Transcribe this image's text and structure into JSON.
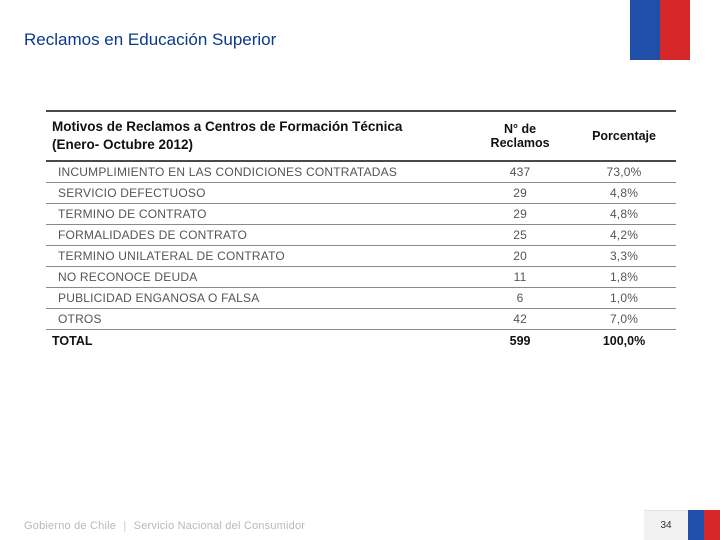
{
  "colors": {
    "title": "#0a3a8a",
    "flag_blue": "#1f4fa8",
    "flag_red": "#d62828",
    "header_text": "#111111",
    "body_text": "#555555",
    "footer_text": "#b8b8b8",
    "page_bg": "#f2f2f2"
  },
  "title": "Reclamos en Educación Superior",
  "table": {
    "header_title_line1": "Motivos de Reclamos a Centros de Formación Técnica",
    "header_title_line2": "(Enero- Octubre 2012)",
    "col2": "N° de Reclamos",
    "col3": "Porcentaje",
    "rows": [
      {
        "motivo": "INCUMPLIMIENTO EN LAS CONDICIONES CONTRATADAS",
        "n": "437",
        "pct": "73,0%"
      },
      {
        "motivo": "SERVICIO DEFECTUOSO",
        "n": "29",
        "pct": "4,8%"
      },
      {
        "motivo": "TERMINO DE CONTRATO",
        "n": "29",
        "pct": "4,8%"
      },
      {
        "motivo": "FORMALIDADES DE CONTRATO",
        "n": "25",
        "pct": "4,2%"
      },
      {
        "motivo": "TERMINO UNILATERAL DE CONTRATO",
        "n": "20",
        "pct": "3,3%"
      },
      {
        "motivo": "NO RECONOCE DEUDA",
        "n": "11",
        "pct": "1,8%"
      },
      {
        "motivo": "PUBLICIDAD ENGANOSA O FALSA",
        "n": "6",
        "pct": "1,0%"
      },
      {
        "motivo": "OTROS",
        "n": "42",
        "pct": "7,0%"
      }
    ],
    "total": {
      "label": "TOTAL",
      "n": "599",
      "pct": "100,0%"
    }
  },
  "footer": {
    "org1": "Gobierno de Chile",
    "org2": "Servicio Nacional del Consumidor",
    "page": "34"
  }
}
